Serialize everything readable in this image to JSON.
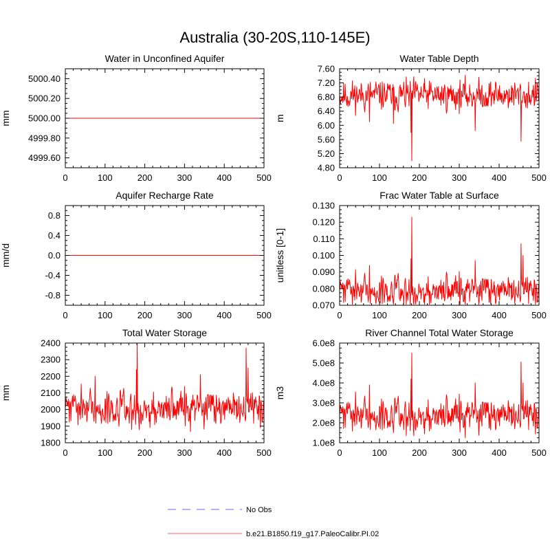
{
  "figure_title": "Australia (30-20S,110-145E)",
  "colors": {
    "model": "#ff0000",
    "obs": "#9999ff",
    "axis": "#000000"
  },
  "legend": {
    "entries": [
      {
        "label": "No Obs",
        "style": "dashed",
        "color": "#9999ff"
      },
      {
        "label": "b.e21.B1850.f19_g17.PaleoCalibr.PI.02",
        "style": "solid",
        "color": "#ff8080"
      }
    ]
  },
  "chart_data": [
    {
      "type": "line",
      "title": "Water in Unconfined Aquifer",
      "ylabel": "mm",
      "xlim": [
        0,
        500
      ],
      "ylim": [
        4999.5,
        5000.5
      ],
      "xticks": [
        0,
        100,
        200,
        300,
        400,
        500
      ],
      "xtick_labels": [
        "0",
        "100",
        "200",
        "300",
        "400",
        "500"
      ],
      "yticks": [
        4999.6,
        4999.8,
        5000.0,
        5000.2,
        5000.4
      ],
      "ytick_labels": [
        "4999.60",
        "4999.80",
        "5000.00",
        "5000.20",
        "5000.40"
      ],
      "series": [
        {
          "name": "b.e21.B1850.f19_g17.PaleoCalibr.PI.02",
          "kind": "constant",
          "value": 5000.0,
          "n": 501
        }
      ]
    },
    {
      "type": "line",
      "title": "Water Table Depth",
      "ylabel": "m",
      "xlim": [
        0,
        500
      ],
      "ylim": [
        4.8,
        7.6
      ],
      "xticks": [
        0,
        100,
        200,
        300,
        400,
        500
      ],
      "xtick_labels": [
        "0",
        "100",
        "200",
        "300",
        "400",
        "500"
      ],
      "yticks": [
        4.8,
        5.2,
        5.6,
        6.0,
        6.4,
        6.8,
        7.2,
        7.6
      ],
      "ytick_labels": [
        "4.80",
        "5.20",
        "5.60",
        "6.00",
        "6.40",
        "6.80",
        "7.20",
        "7.60"
      ],
      "series": [
        {
          "name": "b.e21.B1850.f19_g17.PaleoCalibr.PI.02",
          "kind": "noise",
          "n": 501,
          "mean": 6.85,
          "amp": 0.3,
          "lo": 5.85,
          "hi": 7.42,
          "seed": 11,
          "spikes": [
            [
              181,
              5.0
            ],
            [
              179,
              5.8
            ],
            [
              455,
              5.55
            ],
            [
              75,
              6.1
            ],
            [
              340,
              5.85
            ],
            [
              135,
              6.05
            ]
          ]
        }
      ]
    },
    {
      "type": "line",
      "title": "Aquifer Recharge Rate",
      "ylabel": "mm/d",
      "xlim": [
        0,
        500
      ],
      "ylim": [
        -1.0,
        1.0
      ],
      "xticks": [
        0,
        100,
        200,
        300,
        400,
        500
      ],
      "xtick_labels": [
        "0",
        "100",
        "200",
        "300",
        "400",
        "500"
      ],
      "yticks": [
        -0.8,
        -0.4,
        0.0,
        0.4,
        0.8
      ],
      "ytick_labels": [
        "-0.8",
        "-0.4",
        "0.0",
        "0.4",
        "0.8"
      ],
      "series": [
        {
          "name": "b.e21.B1850.f19_g17.PaleoCalibr.PI.02",
          "kind": "constant",
          "value": 0.0,
          "n": 501
        }
      ]
    },
    {
      "type": "line",
      "title": "Frac Water Table at Surface",
      "ylabel": "unitless [0-1]",
      "xlim": [
        0,
        500
      ],
      "ylim": [
        0.07,
        0.13
      ],
      "xticks": [
        0,
        100,
        200,
        300,
        400,
        500
      ],
      "xtick_labels": [
        "0",
        "100",
        "200",
        "300",
        "400",
        "500"
      ],
      "yticks": [
        0.07,
        0.08,
        0.09,
        0.1,
        0.11,
        0.12,
        0.13
      ],
      "ytick_labels": [
        "0.070",
        "0.080",
        "0.090",
        "0.100",
        "0.110",
        "0.120",
        "0.130"
      ],
      "series": [
        {
          "name": "b.e21.B1850.f19_g17.PaleoCalibr.PI.02",
          "kind": "noise",
          "n": 501,
          "mean": 0.079,
          "amp": 0.0065,
          "lo": 0.0705,
          "hi": 0.097,
          "seed": 11,
          "invert": true,
          "spikes": [
            [
              181,
              0.123
            ],
            [
              179,
              0.098
            ],
            [
              455,
              0.107
            ],
            [
              460,
              0.1
            ],
            [
              75,
              0.094
            ],
            [
              340,
              0.097
            ]
          ]
        }
      ]
    },
    {
      "type": "line",
      "title": "Total Water Storage",
      "ylabel": "mm",
      "xlim": [
        0,
        500
      ],
      "ylim": [
        1800,
        2400
      ],
      "xticks": [
        0,
        100,
        200,
        300,
        400,
        500
      ],
      "xtick_labels": [
        "0",
        "100",
        "200",
        "300",
        "400",
        "500"
      ],
      "yticks": [
        1800,
        1900,
        2000,
        2100,
        2200,
        2300,
        2400
      ],
      "ytick_labels": [
        "1800",
        "1900",
        "2000",
        "2100",
        "2200",
        "2300",
        "2400"
      ],
      "series": [
        {
          "name": "b.e21.B1850.f19_g17.PaleoCalibr.PI.02",
          "kind": "noise",
          "n": 501,
          "mean": 2010,
          "amp": 75,
          "lo": 1850,
          "hi": 2230,
          "seed": 11,
          "invert": true,
          "spikes": [
            [
              181,
              2395
            ],
            [
              179,
              2240
            ],
            [
              455,
              2370
            ],
            [
              460,
              2250
            ],
            [
              75,
              2200
            ],
            [
              340,
              2210
            ]
          ]
        }
      ]
    },
    {
      "type": "line",
      "title": "River Channel Total Water Storage",
      "ylabel": "m3",
      "xlim": [
        0,
        500
      ],
      "ylim": [
        100000000,
        600000000
      ],
      "xticks": [
        0,
        100,
        200,
        300,
        400,
        500
      ],
      "xtick_labels": [
        "0",
        "100",
        "200",
        "300",
        "400",
        "500"
      ],
      "yticks": [
        100000000,
        200000000,
        300000000,
        400000000,
        500000000,
        600000000
      ],
      "ytick_labels": [
        "1.0e8",
        "2.0e8",
        "3.0e8",
        "4.0e8",
        "5.0e8",
        "6.0e8"
      ],
      "series": [
        {
          "name": "b.e21.B1850.f19_g17.PaleoCalibr.PI.02",
          "kind": "noise",
          "n": 501,
          "mean": 240000000,
          "amp": 60000000,
          "lo": 110000000,
          "hi": 420000000,
          "seed": 11,
          "invert": true,
          "spikes": [
            [
              181,
              550000000
            ],
            [
              179,
              420000000
            ],
            [
              455,
              505000000
            ],
            [
              460,
              400000000
            ],
            [
              75,
              390000000
            ],
            [
              340,
              400000000
            ]
          ]
        }
      ]
    }
  ]
}
